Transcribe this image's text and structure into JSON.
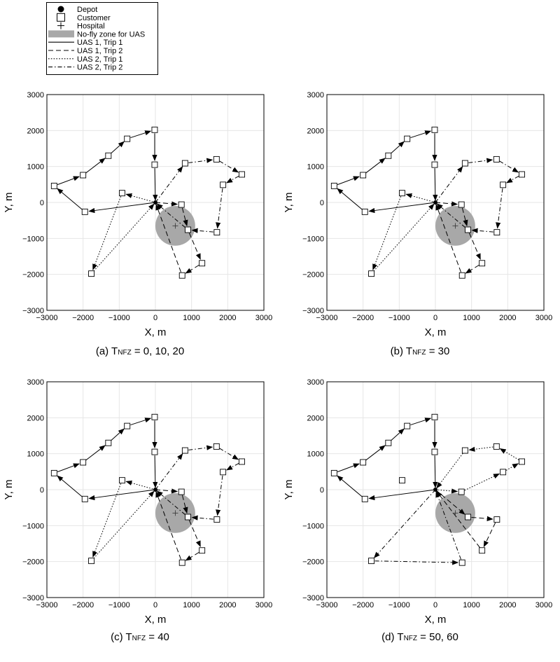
{
  "legend": {
    "items": [
      {
        "label": "Depot",
        "kind": "depot"
      },
      {
        "label": "Customer",
        "kind": "customer"
      },
      {
        "label": "Hospital",
        "kind": "hospital"
      },
      {
        "label": "No-fly zone for UAS",
        "kind": "nfz"
      },
      {
        "label": "UAS 1, Trip 1",
        "kind": "line",
        "dash": "solid"
      },
      {
        "label": "UAS 1, Trip 2",
        "kind": "line",
        "dash": "dashed"
      },
      {
        "label": "UAS 2, Trip 1",
        "kind": "line",
        "dash": "dotted"
      },
      {
        "label": "UAS 2, Trip 2",
        "kind": "line",
        "dash": "dashdot"
      }
    ]
  },
  "colors": {
    "nfz": "#a8a8a8",
    "grid": "#e6e6e6",
    "line": "#000000"
  },
  "chart_data": [
    {
      "type": "line",
      "caption": {
        "prefix": "(a) T",
        "sub": "NFZ",
        "suffix": " = 0, 10, 20"
      },
      "xlabel": "X, m",
      "ylabel": "Y, m",
      "xlim": [
        -3000,
        3000
      ],
      "ylim": [
        -3000,
        3000
      ],
      "xticks": [
        -3000,
        -2000,
        -1000,
        0,
        1000,
        2000,
        3000
      ],
      "yticks": [
        -3000,
        -2000,
        -1000,
        0,
        1000,
        2000,
        3000
      ],
      "grid": true,
      "depot": [
        0,
        0
      ],
      "hospital": [
        550,
        -650
      ],
      "nfz": {
        "center": [
          550,
          -650
        ],
        "radius": 550
      },
      "customers": [
        [
          -20,
          2020
        ],
        [
          -20,
          1050
        ],
        [
          -780,
          1770
        ],
        [
          -1300,
          1300
        ],
        [
          -2000,
          760
        ],
        [
          -2800,
          460
        ],
        [
          -1950,
          -260
        ],
        [
          -920,
          260
        ],
        [
          -1770,
          -1980
        ],
        [
          720,
          -60
        ],
        [
          900,
          -760
        ],
        [
          740,
          -2030
        ],
        [
          1290,
          -1690
        ],
        [
          820,
          1090
        ],
        [
          1690,
          1200
        ],
        [
          2390,
          780
        ],
        [
          1870,
          490
        ],
        [
          1700,
          -830
        ]
      ],
      "series": [
        {
          "name": "UAS 1, Trip 1",
          "dash": "solid",
          "points": [
            [
              0,
              0
            ],
            [
              -1950,
              -260
            ],
            [
              -2800,
              460
            ],
            [
              -2000,
              760
            ],
            [
              -1300,
              1300
            ],
            [
              -780,
              1770
            ],
            [
              -20,
              2020
            ],
            [
              -20,
              1050
            ],
            [
              0,
              0
            ]
          ]
        },
        {
          "name": "UAS 1, Trip 2",
          "dash": "dashed",
          "points": [
            [
              0,
              0
            ],
            [
              720,
              -60
            ],
            [
              900,
              -760
            ],
            [
              1290,
              -1690
            ],
            [
              740,
              -2030
            ],
            [
              0,
              0
            ]
          ]
        },
        {
          "name": "UAS 2, Trip 1",
          "dash": "dotted",
          "points": [
            [
              0,
              0
            ],
            [
              -920,
              260
            ],
            [
              -1770,
              -1980
            ],
            [
              0,
              0
            ]
          ]
        },
        {
          "name": "UAS 2, Trip 2",
          "dash": "dashdot",
          "points": [
            [
              0,
              0
            ],
            [
              820,
              1090
            ],
            [
              1690,
              1200
            ],
            [
              2390,
              780
            ],
            [
              1870,
              490
            ],
            [
              1700,
              -830
            ],
            [
              900,
              -760
            ],
            [
              0,
              0
            ]
          ]
        }
      ]
    },
    {
      "type": "line",
      "caption": {
        "prefix": "(b) T",
        "sub": "NFZ",
        "suffix": " = 30"
      },
      "xlabel": "X, m",
      "ylabel": "Y, m",
      "xlim": [
        -3000,
        3000
      ],
      "ylim": [
        -3000,
        3000
      ],
      "xticks": [
        -3000,
        -2000,
        -1000,
        0,
        1000,
        2000,
        3000
      ],
      "yticks": [
        -3000,
        -2000,
        -1000,
        0,
        1000,
        2000,
        3000
      ],
      "grid": true,
      "depot": [
        0,
        0
      ],
      "hospital": [
        550,
        -650
      ],
      "nfz": {
        "center": [
          550,
          -650
        ],
        "radius": 550
      },
      "customers": [
        [
          -20,
          2020
        ],
        [
          -20,
          1050
        ],
        [
          -780,
          1770
        ],
        [
          -1300,
          1300
        ],
        [
          -2000,
          760
        ],
        [
          -2800,
          460
        ],
        [
          -1950,
          -260
        ],
        [
          -920,
          260
        ],
        [
          -1770,
          -1980
        ],
        [
          720,
          -60
        ],
        [
          900,
          -760
        ],
        [
          740,
          -2030
        ],
        [
          1290,
          -1690
        ],
        [
          820,
          1090
        ],
        [
          1690,
          1200
        ],
        [
          2390,
          780
        ],
        [
          1870,
          490
        ],
        [
          1700,
          -830
        ]
      ],
      "series": [
        {
          "name": "UAS 1, Trip 1",
          "dash": "solid",
          "points": [
            [
              0,
              0
            ],
            [
              -1950,
              -260
            ],
            [
              -2800,
              460
            ],
            [
              -2000,
              760
            ],
            [
              -1300,
              1300
            ],
            [
              -780,
              1770
            ],
            [
              -20,
              2020
            ],
            [
              -20,
              1050
            ],
            [
              0,
              0
            ]
          ]
        },
        {
          "name": "UAS 1, Trip 2",
          "dash": "dashed",
          "points": [
            [
              0,
              0
            ],
            [
              720,
              -60
            ],
            [
              900,
              -760
            ],
            [
              1290,
              -1690
            ],
            [
              740,
              -2030
            ],
            [
              0,
              0
            ]
          ]
        },
        {
          "name": "UAS 2, Trip 1",
          "dash": "dotted",
          "points": [
            [
              0,
              0
            ],
            [
              -920,
              260
            ],
            [
              -1770,
              -1980
            ],
            [
              0,
              0
            ]
          ]
        },
        {
          "name": "UAS 2, Trip 2",
          "dash": "dashdot",
          "points": [
            [
              0,
              0
            ],
            [
              820,
              1090
            ],
            [
              1690,
              1200
            ],
            [
              2390,
              780
            ],
            [
              1870,
              490
            ],
            [
              1700,
              -830
            ],
            [
              900,
              -760
            ],
            [
              0,
              0
            ]
          ]
        }
      ]
    },
    {
      "type": "line",
      "caption": {
        "prefix": "(c) T",
        "sub": "NFZ",
        "suffix": " = 40"
      },
      "xlabel": "X, m",
      "ylabel": "Y, m",
      "xlim": [
        -3000,
        3000
      ],
      "ylim": [
        -3000,
        3000
      ],
      "xticks": [
        -3000,
        -2000,
        -1000,
        0,
        1000,
        2000,
        3000
      ],
      "yticks": [
        -3000,
        -2000,
        -1000,
        0,
        1000,
        2000,
        3000
      ],
      "grid": true,
      "depot": [
        0,
        0
      ],
      "hospital": [
        550,
        -650
      ],
      "nfz": {
        "center": [
          550,
          -650
        ],
        "radius": 550
      },
      "customers": [
        [
          -20,
          2020
        ],
        [
          -20,
          1050
        ],
        [
          -780,
          1770
        ],
        [
          -1300,
          1300
        ],
        [
          -2000,
          760
        ],
        [
          -2800,
          460
        ],
        [
          -1950,
          -260
        ],
        [
          -920,
          260
        ],
        [
          -1770,
          -1980
        ],
        [
          720,
          -60
        ],
        [
          900,
          -760
        ],
        [
          740,
          -2030
        ],
        [
          1290,
          -1690
        ],
        [
          820,
          1090
        ],
        [
          1690,
          1200
        ],
        [
          2390,
          780
        ],
        [
          1870,
          490
        ],
        [
          1700,
          -830
        ]
      ],
      "series": [
        {
          "name": "UAS 1, Trip 1",
          "dash": "solid",
          "points": [
            [
              0,
              0
            ],
            [
              -1950,
              -260
            ],
            [
              -2800,
              460
            ],
            [
              -2000,
              760
            ],
            [
              -1300,
              1300
            ],
            [
              -780,
              1770
            ],
            [
              -20,
              2020
            ],
            [
              -20,
              1050
            ],
            [
              0,
              0
            ]
          ]
        },
        {
          "name": "UAS 1, Trip 2",
          "dash": "dashed",
          "points": [
            [
              0,
              0
            ],
            [
              720,
              -60
            ],
            [
              900,
              -760
            ],
            [
              1290,
              -1690
            ],
            [
              740,
              -2030
            ],
            [
              0,
              0
            ]
          ]
        },
        {
          "name": "UAS 2, Trip 1",
          "dash": "dotted",
          "points": [
            [
              0,
              0
            ],
            [
              -920,
              260
            ],
            [
              -1770,
              -1980
            ],
            [
              0,
              0
            ]
          ]
        },
        {
          "name": "UAS 2, Trip 2",
          "dash": "dashdot",
          "points": [
            [
              0,
              0
            ],
            [
              820,
              1090
            ],
            [
              1690,
              1200
            ],
            [
              2390,
              780
            ],
            [
              1870,
              490
            ],
            [
              1700,
              -830
            ],
            [
              900,
              -760
            ],
            [
              0,
              0
            ]
          ]
        }
      ]
    },
    {
      "type": "line",
      "caption": {
        "prefix": "(d) T",
        "sub": "NFZ",
        "suffix": " = 50, 60"
      },
      "xlabel": "X, m",
      "ylabel": "Y, m",
      "xlim": [
        -3000,
        3000
      ],
      "ylim": [
        -3000,
        3000
      ],
      "xticks": [
        -3000,
        -2000,
        -1000,
        0,
        1000,
        2000,
        3000
      ],
      "yticks": [
        -3000,
        -2000,
        -1000,
        0,
        1000,
        2000,
        3000
      ],
      "grid": true,
      "depot": [
        0,
        0
      ],
      "hospital": [
        550,
        -650
      ],
      "nfz": {
        "center": [
          550,
          -650
        ],
        "radius": 550
      },
      "customers": [
        [
          -20,
          2020
        ],
        [
          -20,
          1050
        ],
        [
          -780,
          1770
        ],
        [
          -1300,
          1300
        ],
        [
          -2000,
          760
        ],
        [
          -2800,
          460
        ],
        [
          -1950,
          -260
        ],
        [
          -920,
          260
        ],
        [
          -1770,
          -1980
        ],
        [
          720,
          -60
        ],
        [
          900,
          -760
        ],
        [
          740,
          -2030
        ],
        [
          1290,
          -1690
        ],
        [
          820,
          1090
        ],
        [
          1690,
          1200
        ],
        [
          2390,
          780
        ],
        [
          1870,
          490
        ],
        [
          1700,
          -830
        ]
      ],
      "series": [
        {
          "name": "UAS 1, Trip 1",
          "dash": "solid",
          "points": [
            [
              0,
              0
            ],
            [
              -1950,
              -260
            ],
            [
              -2800,
              460
            ],
            [
              -2000,
              760
            ],
            [
              -1300,
              1300
            ],
            [
              -780,
              1770
            ],
            [
              -20,
              2020
            ],
            [
              -20,
              1050
            ],
            [
              0,
              0
            ]
          ]
        },
        {
          "name": "UAS 1, Trip 2",
          "dash": "dashed",
          "points": [
            [
              0,
              0
            ],
            [
              900,
              -760
            ],
            [
              1700,
              -830
            ],
            [
              1290,
              -1690
            ],
            [
              0,
              0
            ]
          ]
        },
        {
          "name": "UAS 2, Trip 1",
          "dash": "dotted",
          "points": [
            [
              0,
              0
            ],
            [
              720,
              -60
            ],
            [
              1870,
              490
            ],
            [
              2390,
              780
            ],
            [
              1690,
              1200
            ],
            [
              820,
              1090
            ],
            [
              0,
              0
            ]
          ]
        },
        {
          "name": "UAS 2, Trip 2",
          "dash": "dashdot",
          "points": [
            [
              0,
              0
            ],
            [
              -1770,
              -1980
            ],
            [
              740,
              -2030
            ],
            [
              0,
              0
            ]
          ]
        }
      ]
    }
  ]
}
